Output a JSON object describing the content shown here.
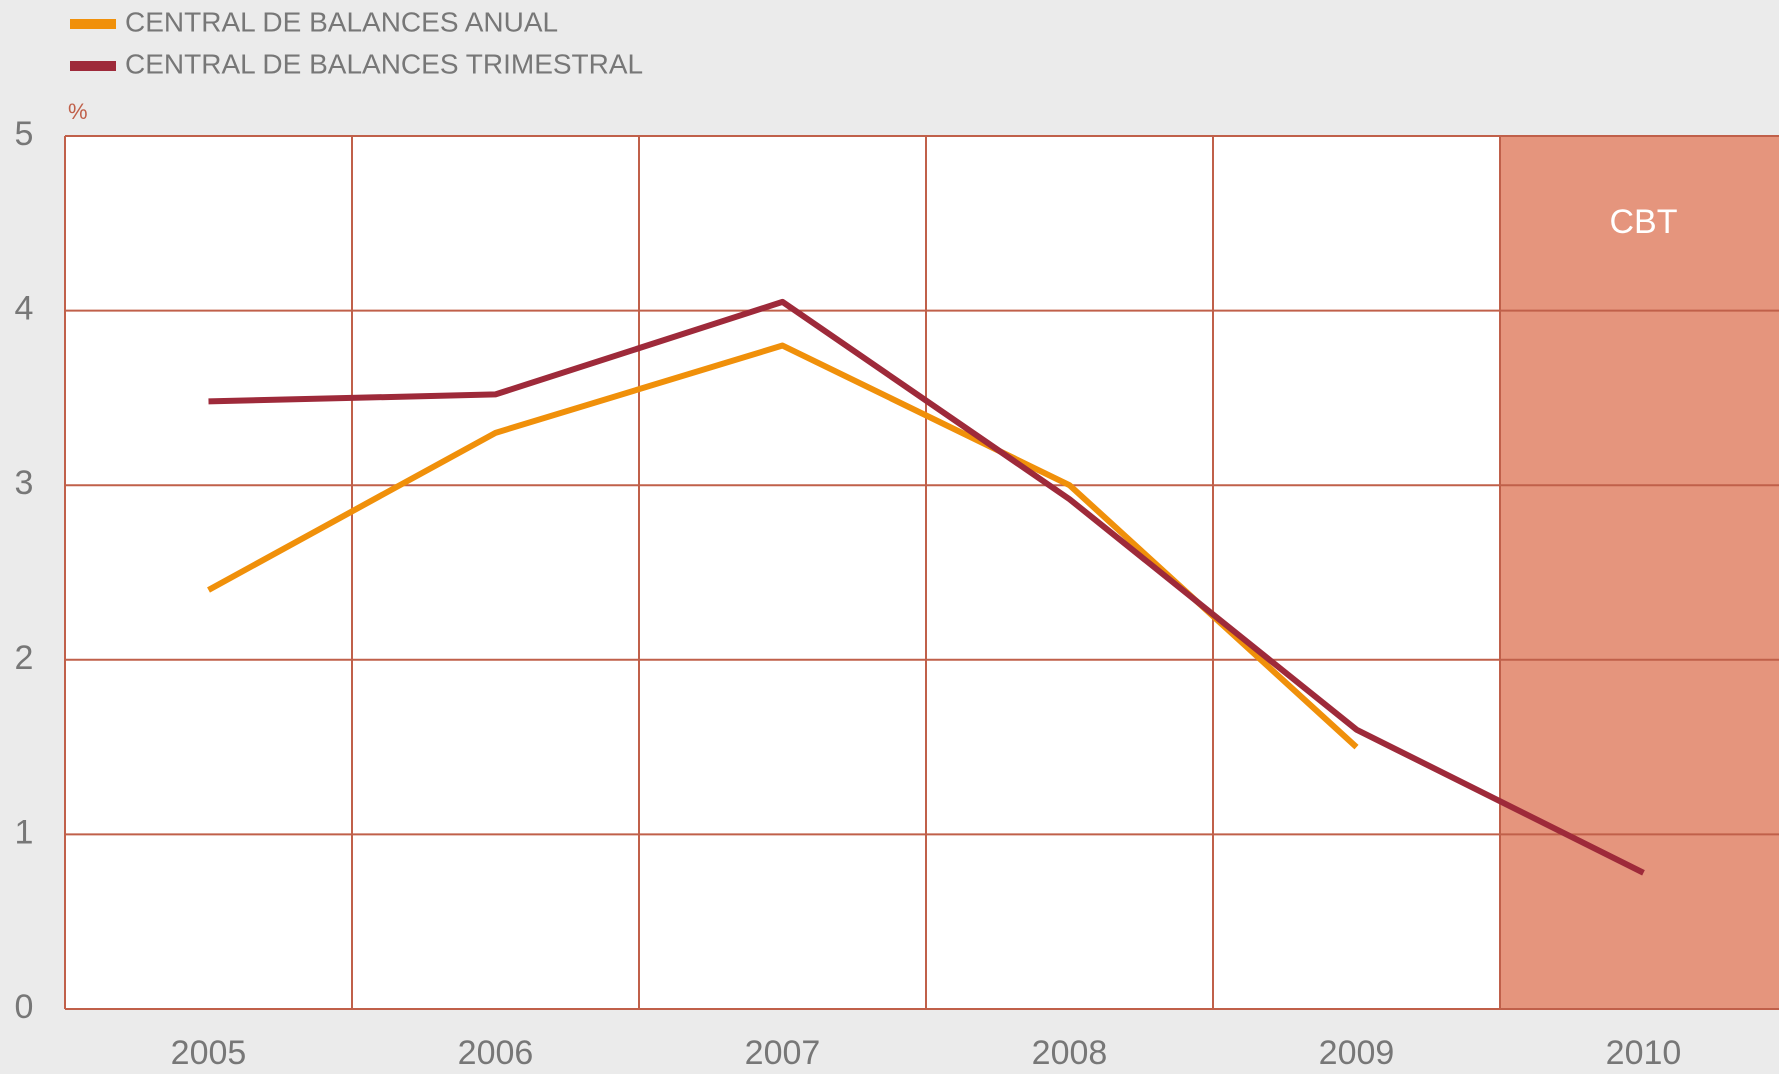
{
  "chart_data": {
    "type": "line",
    "y_unit": "%",
    "categories": [
      "2005",
      "2006",
      "2007",
      "2008",
      "2009",
      "2010"
    ],
    "series": [
      {
        "name": "CENTRAL DE BALANCES ANUAL",
        "color": "#f0900a",
        "values": [
          2.4,
          3.3,
          3.8,
          3.0,
          1.5,
          null
        ]
      },
      {
        "name": "CENTRAL DE BALANCES TRIMESTRAL",
        "color": "#9e2a3a",
        "values": [
          3.48,
          3.52,
          4.05,
          2.92,
          1.6,
          0.78
        ]
      }
    ],
    "ylim": [
      0,
      5
    ],
    "yticks": [
      0,
      1,
      2,
      3,
      4,
      5
    ],
    "grid": true,
    "shaded_region": {
      "label": "CBT",
      "category": "2010",
      "color": "#e5957d"
    }
  }
}
